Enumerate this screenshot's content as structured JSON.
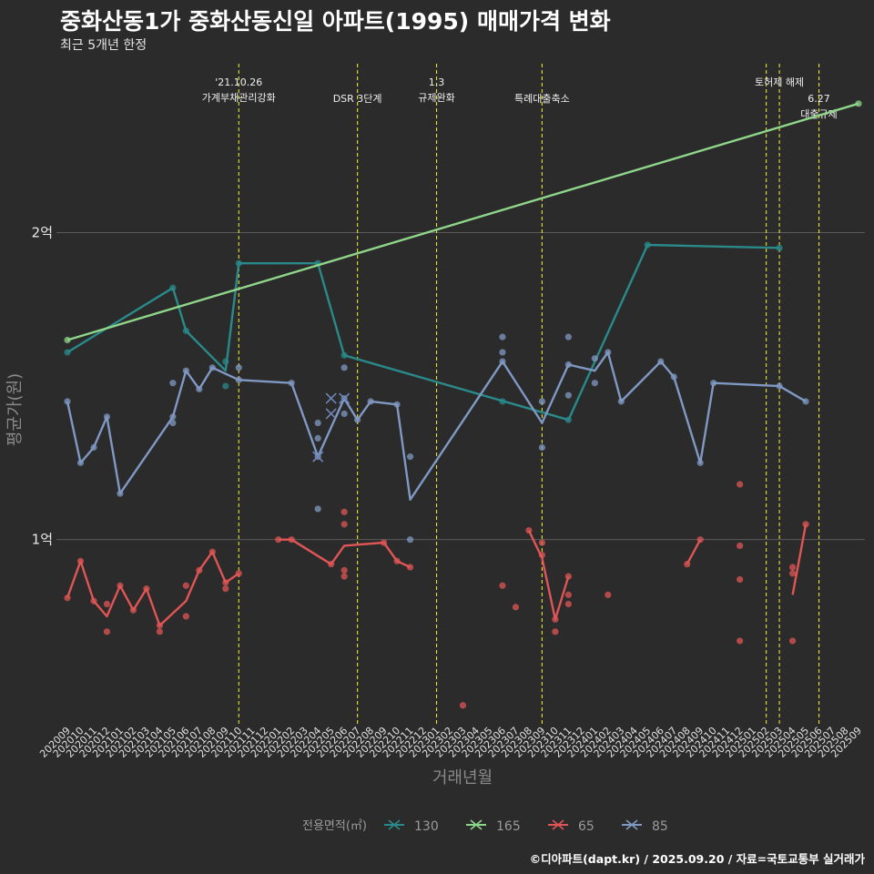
{
  "title": "중화산동1가 중화산동신일 아파트(1995) 매매가격 변화",
  "subtitle": "최근 5개년 한정",
  "caption": "©디아파트(dapt.kr) / 2025.09.20 / 자료=국토교통부 실거래가",
  "chart_data": {
    "type": "line",
    "title": "중화산동1가 중화산동신일 아파트(1995) 매매가격 변화",
    "xlabel": "거래년월",
    "ylabel": "평균가(원)",
    "ylim": [
      40000000,
      255000000
    ],
    "yticks": [
      {
        "value": 100000000,
        "label": "1억"
      },
      {
        "value": 200000000,
        "label": "2억"
      }
    ],
    "grid": true,
    "categories": [
      "202009",
      "202010",
      "202011",
      "202012",
      "202101",
      "202102",
      "202103",
      "202104",
      "202105",
      "202106",
      "202107",
      "202108",
      "202109",
      "202110",
      "202111",
      "202112",
      "202201",
      "202202",
      "202203",
      "202204",
      "202205",
      "202206",
      "202207",
      "202208",
      "202209",
      "202210",
      "202211",
      "202212",
      "202301",
      "202302",
      "202303",
      "202304",
      "202305",
      "202306",
      "202307",
      "202308",
      "202309",
      "202310",
      "202311",
      "202312",
      "202401",
      "202402",
      "202403",
      "202404",
      "202405",
      "202406",
      "202407",
      "202408",
      "202409",
      "202410",
      "202411",
      "202412",
      "202501",
      "202502",
      "202503",
      "202504",
      "202505",
      "202506",
      "202507",
      "202508",
      "202509"
    ],
    "legend": {
      "title": "전용면적(㎡)",
      "position": "bottom"
    },
    "series": [
      {
        "name": "130",
        "color": "#2a8a8a",
        "line": [
          [
            "202009",
            161000000
          ],
          [
            "202105",
            182000000
          ],
          [
            "202106",
            168000000
          ],
          [
            "202109",
            155000000
          ],
          [
            "202110",
            190000000
          ],
          [
            "202204",
            190000000
          ],
          [
            "202206",
            160000000
          ],
          [
            "202311",
            139000000
          ],
          [
            "202405",
            196000000
          ],
          [
            "202503",
            195000000
          ]
        ],
        "points": [
          [
            "202009",
            161000000
          ],
          [
            "202105",
            182000000
          ],
          [
            "202106",
            168000000
          ],
          [
            "202109",
            158000000
          ],
          [
            "202109",
            150000000
          ],
          [
            "202110",
            190000000
          ],
          [
            "202204",
            190000000
          ],
          [
            "202206",
            160000000
          ],
          [
            "202306",
            145000000
          ],
          [
            "202311",
            139000000
          ],
          [
            "202405",
            196000000
          ],
          [
            "202503",
            195000000
          ]
        ]
      },
      {
        "name": "165",
        "color": "#8fd68a",
        "line": [
          [
            "202009",
            165000000
          ],
          [
            "202509",
            242000000
          ]
        ],
        "points": [
          [
            "202009",
            165000000
          ],
          [
            "202509",
            242000000
          ]
        ]
      },
      {
        "name": "65",
        "color": "#e05555",
        "line": [
          [
            "202009",
            81000000
          ],
          [
            "202010",
            93000000
          ],
          [
            "202011",
            80000000
          ],
          [
            "202012",
            75000000
          ],
          [
            "202101",
            85000000
          ],
          [
            "202102",
            77000000
          ],
          [
            "202103",
            84000000
          ],
          [
            "202104",
            72000000
          ],
          [
            "202106",
            80000000
          ],
          [
            "202107",
            90000000
          ],
          [
            "202108",
            96000000
          ],
          [
            "202109",
            86000000
          ],
          [
            "202110",
            89000000
          ],
          [
            "null",
            null
          ],
          [
            "202201",
            100000000
          ],
          [
            "202202",
            100000000
          ],
          [
            "202205",
            92000000
          ],
          [
            "202206",
            98000000
          ],
          [
            "202209",
            99000000
          ],
          [
            "202210",
            93000000
          ],
          [
            "202211",
            91000000
          ],
          [
            "null",
            null
          ],
          [
            "202308",
            103000000
          ],
          [
            "202309",
            94000000
          ],
          [
            "202310",
            74000000
          ],
          [
            "202311",
            88000000
          ],
          [
            "null",
            null
          ],
          [
            "202408",
            92000000
          ],
          [
            "202409",
            100000000
          ],
          [
            "null",
            null
          ],
          [
            "202504",
            82000000
          ],
          [
            "202505",
            105000000
          ]
        ],
        "points": [
          [
            "202009",
            81000000
          ],
          [
            "202010",
            93000000
          ],
          [
            "202011",
            80000000
          ],
          [
            "202012",
            79000000
          ],
          [
            "202012",
            70000000
          ],
          [
            "202101",
            85000000
          ],
          [
            "202102",
            77000000
          ],
          [
            "202103",
            84000000
          ],
          [
            "202104",
            72000000
          ],
          [
            "202104",
            70000000
          ],
          [
            "202106",
            85000000
          ],
          [
            "202106",
            75000000
          ],
          [
            "202107",
            90000000
          ],
          [
            "202108",
            96000000
          ],
          [
            "202109",
            86000000
          ],
          [
            "202109",
            84000000
          ],
          [
            "202110",
            89000000
          ],
          [
            "202201",
            100000000
          ],
          [
            "202202",
            100000000
          ],
          [
            "202205",
            92000000
          ],
          [
            "202206",
            109000000
          ],
          [
            "202206",
            105000000
          ],
          [
            "202206",
            90000000
          ],
          [
            "202206",
            88000000
          ],
          [
            "202209",
            99000000
          ],
          [
            "202210",
            93000000
          ],
          [
            "202211",
            91000000
          ],
          [
            "202303",
            46000000
          ],
          [
            "202306",
            85000000
          ],
          [
            "202307",
            78000000
          ],
          [
            "202308",
            103000000
          ],
          [
            "202309",
            95000000
          ],
          [
            "202309",
            99000000
          ],
          [
            "202310",
            74000000
          ],
          [
            "202310",
            70000000
          ],
          [
            "202311",
            88000000
          ],
          [
            "202311",
            82000000
          ],
          [
            "202311",
            79000000
          ],
          [
            "202402",
            82000000
          ],
          [
            "202408",
            92000000
          ],
          [
            "202409",
            100000000
          ],
          [
            "202412",
            118000000
          ],
          [
            "202412",
            98000000
          ],
          [
            "202412",
            87000000
          ],
          [
            "202412",
            67000000
          ],
          [
            "202504",
            91000000
          ],
          [
            "202504",
            89000000
          ],
          [
            "202504",
            67000000
          ],
          [
            "202505",
            105000000
          ]
        ]
      },
      {
        "name": "85",
        "color": "#8099c4",
        "line": [
          [
            "202009",
            145000000
          ],
          [
            "202010",
            125000000
          ],
          [
            "202011",
            130000000
          ],
          [
            "202012",
            140000000
          ],
          [
            "202101",
            115000000
          ],
          [
            "202105",
            140000000
          ],
          [
            "202106",
            155000000
          ],
          [
            "202107",
            149000000
          ],
          [
            "202108",
            156000000
          ],
          [
            "202110",
            152000000
          ],
          [
            "202202",
            151000000
          ],
          [
            "202204",
            127000000
          ],
          [
            "202206",
            146000000
          ],
          [
            "202207",
            139000000
          ],
          [
            "202208",
            145000000
          ],
          [
            "202210",
            144000000
          ],
          [
            "202211",
            113000000
          ],
          [
            "202306",
            158000000
          ],
          [
            "202309",
            138000000
          ],
          [
            "202311",
            157000000
          ],
          [
            "202401",
            155000000
          ],
          [
            "202402",
            161000000
          ],
          [
            "202403",
            145000000
          ],
          [
            "202406",
            158000000
          ],
          [
            "202407",
            153000000
          ],
          [
            "202409",
            125000000
          ],
          [
            "202410",
            151000000
          ],
          [
            "202503",
            150000000
          ],
          [
            "202505",
            145000000
          ]
        ],
        "points": [
          [
            "202009",
            145000000
          ],
          [
            "202010",
            125000000
          ],
          [
            "202011",
            130000000
          ],
          [
            "202012",
            140000000
          ],
          [
            "202101",
            115000000
          ],
          [
            "202105",
            151000000
          ],
          [
            "202105",
            140000000
          ],
          [
            "202105",
            138000000
          ],
          [
            "202106",
            155000000
          ],
          [
            "202107",
            149000000
          ],
          [
            "202108",
            156000000
          ],
          [
            "202110",
            156000000
          ],
          [
            "202110",
            152000000
          ],
          [
            "202202",
            151000000
          ],
          [
            "202204",
            138000000
          ],
          [
            "202204",
            133000000
          ],
          [
            "202204",
            127000000
          ],
          [
            "202204",
            110000000
          ],
          [
            "202206",
            156000000
          ],
          [
            "202206",
            146000000
          ],
          [
            "202206",
            141000000
          ],
          [
            "202207",
            139000000
          ],
          [
            "202208",
            145000000
          ],
          [
            "202210",
            144000000
          ],
          [
            "202211",
            127000000
          ],
          [
            "202211",
            100000000
          ],
          [
            "202306",
            166000000
          ],
          [
            "202306",
            161000000
          ],
          [
            "202306",
            158000000
          ],
          [
            "202309",
            145000000
          ],
          [
            "202309",
            130000000
          ],
          [
            "202311",
            166000000
          ],
          [
            "202311",
            157000000
          ],
          [
            "202311",
            147000000
          ],
          [
            "202401",
            159000000
          ],
          [
            "202401",
            151000000
          ],
          [
            "202402",
            161000000
          ],
          [
            "202403",
            145000000
          ],
          [
            "202406",
            158000000
          ],
          [
            "202407",
            153000000
          ],
          [
            "202409",
            125000000
          ],
          [
            "202410",
            151000000
          ],
          [
            "202503",
            150000000
          ],
          [
            "202505",
            145000000
          ]
        ],
        "crosses": [
          [
            "202204",
            127000000
          ],
          [
            "202205",
            141000000
          ],
          [
            "202205",
            146000000
          ],
          [
            "202206",
            146000000
          ]
        ]
      }
    ],
    "annotations": [
      {
        "x": "202110",
        "lines": [
          "'21.10.26",
          "가계부채관리강화"
        ],
        "row": 0
      },
      {
        "x": "202207",
        "lines": [
          "DSR 3단계"
        ],
        "row": 1
      },
      {
        "x": "202301",
        "lines": [
          "1.3",
          "규제완화"
        ],
        "row": 0
      },
      {
        "x": "202309",
        "lines": [
          "특례대출축소"
        ],
        "row": 1
      },
      {
        "x": "202502",
        "lines": [],
        "row": 0
      },
      {
        "x": "202503",
        "lines": [
          "토허제 해제"
        ],
        "row": 0
      },
      {
        "x": "202506",
        "lines": [
          "6.27",
          "대출규제"
        ],
        "row": 1
      }
    ]
  }
}
